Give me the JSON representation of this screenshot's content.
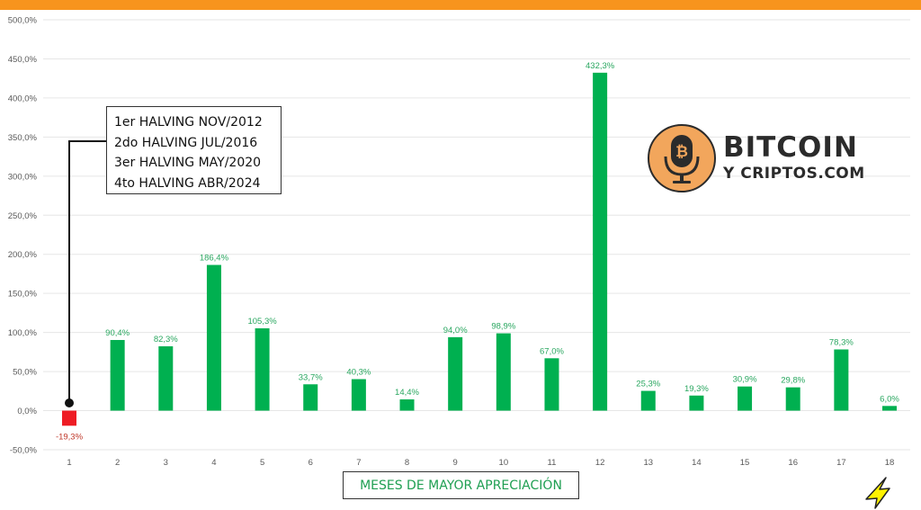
{
  "colors": {
    "top_bar": "#f7941d",
    "positive_bar": "#00b050",
    "negative_bar": "#ee1c24",
    "positive_label": "#2aa760",
    "negative_label": "#c0392b",
    "grid": "#e6e6e6",
    "axis_title_text": "#1f9f52",
    "logo_accent": "#f2a65c"
  },
  "chart_data": {
    "type": "bar",
    "title": "",
    "xlabel": "MESES DE MAYOR APRECIACIÓN",
    "ylabel": "",
    "categories": [
      "1",
      "2",
      "3",
      "4",
      "5",
      "6",
      "7",
      "8",
      "9",
      "10",
      "11",
      "12",
      "13",
      "14",
      "15",
      "16",
      "17",
      "18"
    ],
    "values": [
      -19.3,
      90.4,
      82.3,
      186.4,
      105.3,
      33.7,
      40.3,
      14.4,
      94.0,
      98.9,
      67.0,
      432.3,
      25.3,
      19.3,
      30.9,
      29.8,
      78.3,
      6.0
    ],
    "value_labels": [
      "-19,3%",
      "90,4%",
      "82,3%",
      "186,4%",
      "105,3%",
      "33,7%",
      "40,3%",
      "14,4%",
      "94,0%",
      "98,9%",
      "67,0%",
      "432,3%",
      "25,3%",
      "19,3%",
      "30,9%",
      "29,8%",
      "78,3%",
      "6,0%"
    ],
    "ylim": [
      -50,
      500
    ],
    "yticks": [
      -50,
      0,
      50,
      100,
      150,
      200,
      250,
      300,
      350,
      400,
      450,
      500
    ],
    "ytick_labels": [
      "-50,0%",
      "0,0%",
      "50,0%",
      "100,0%",
      "150,0%",
      "200,0%",
      "250,0%",
      "300,0%",
      "350,0%",
      "400,0%",
      "450,0%",
      "500,0%"
    ],
    "grid": true,
    "annotation": {
      "points_to_category": "1",
      "lines": [
        "1er HALVING NOV/2012",
        "2do HALVING JUL/2016",
        "3er HALVING MAY/2020",
        "4to HALVING ABR/2024"
      ]
    }
  },
  "logo": {
    "line1": "BITCOIN",
    "line2": "Y CRIPTOS.COM",
    "icon": "microphone-bitcoin-icon"
  }
}
